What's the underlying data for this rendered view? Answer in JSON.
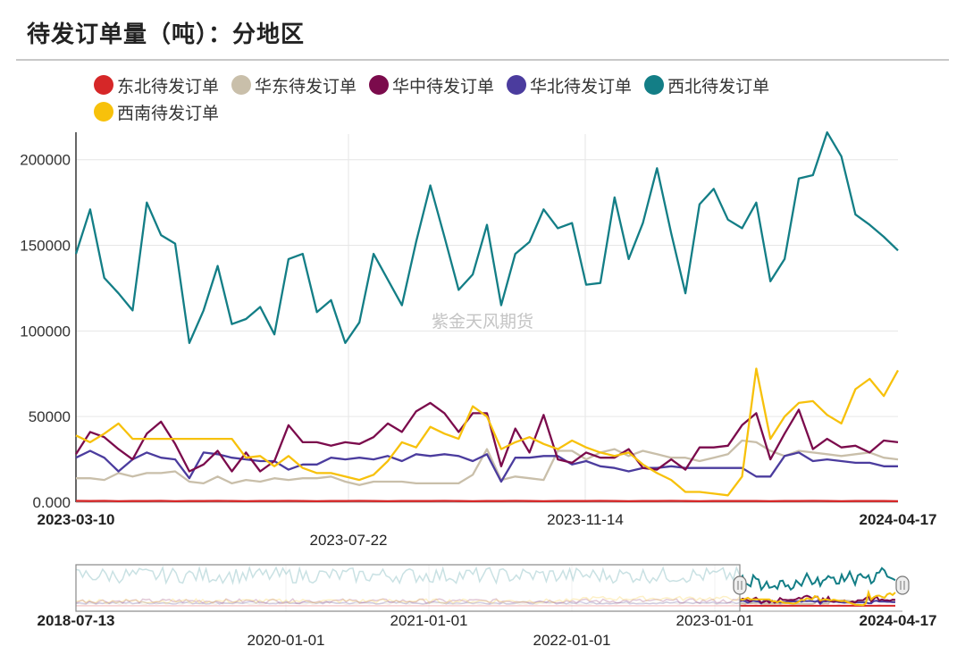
{
  "title": "待发订单量（吨）：分地区",
  "watermark": "紫金天风期货",
  "colors": {
    "东北待发订单": "#d62728",
    "华东待发订单": "#c9bfaa",
    "华中待发订单": "#7b0b4c",
    "华北待发订单": "#4b3c9e",
    "西北待发订单": "#137e86",
    "西南待发订单": "#f7c10b"
  },
  "legend": [
    "东北待发订单",
    "华东待发订单",
    "华中待发订单",
    "华北待发订单",
    "西北待发订单",
    "西南待发订单"
  ],
  "chart_data": {
    "type": "line",
    "x_range": [
      "2023-03-10",
      "2024-04-17"
    ],
    "x_tick_labels": [
      "2023-03-10",
      "2023-07-22",
      "2023-11-14",
      "2024-04-17"
    ],
    "y_tick_labels": [
      "0.000",
      "50000",
      "100000",
      "150000",
      "200000"
    ],
    "ylim": [
      0,
      215000
    ],
    "grid": true,
    "legend_position": "top",
    "series": [
      {
        "name": "西北待发订单",
        "values": [
          145000,
          171000,
          131000,
          122000,
          112000,
          175000,
          156000,
          151000,
          93000,
          112000,
          138000,
          104000,
          107000,
          114000,
          98000,
          142000,
          145000,
          111000,
          118000,
          93000,
          105000,
          145000,
          130000,
          115000,
          152000,
          185000,
          155000,
          124000,
          133000,
          162000,
          115000,
          145000,
          152000,
          171000,
          160000,
          163000,
          127000,
          128000,
          178000,
          142000,
          163000,
          195000,
          157000,
          122000,
          174000,
          183000,
          165000,
          160000,
          175000,
          129000,
          142000,
          189000,
          191000,
          216000,
          202000,
          168000,
          162000,
          155000,
          147000
        ]
      },
      {
        "name": "西南待发订单",
        "values": [
          39000,
          35000,
          40000,
          46000,
          37000,
          37000,
          37000,
          37000,
          37000,
          37000,
          37000,
          37000,
          26000,
          27000,
          21000,
          27000,
          20000,
          17000,
          17000,
          15000,
          13000,
          16000,
          24000,
          35000,
          32000,
          44000,
          40000,
          37000,
          56000,
          50000,
          31000,
          35000,
          38000,
          34000,
          31000,
          36000,
          32000,
          29000,
          27000,
          29000,
          22000,
          17000,
          13000,
          6000,
          6000,
          5000,
          4000,
          15000,
          78000,
          37000,
          50000,
          58000,
          59000,
          51000,
          46000,
          66000,
          72000,
          62000,
          77000
        ]
      },
      {
        "name": "华中待发订单",
        "values": [
          28000,
          41000,
          38000,
          31000,
          25000,
          40000,
          47000,
          34000,
          18000,
          22000,
          30000,
          18000,
          29000,
          18000,
          24000,
          45000,
          35000,
          35000,
          33000,
          35000,
          34000,
          38000,
          46000,
          41000,
          53000,
          58000,
          52000,
          41000,
          52000,
          52000,
          21000,
          43000,
          29000,
          51000,
          25000,
          23000,
          29000,
          26000,
          26000,
          31000,
          20000,
          19000,
          25000,
          19000,
          32000,
          32000,
          33000,
          45000,
          52000,
          25000,
          40000,
          54000,
          31000,
          37000,
          32000,
          33000,
          29000,
          36000,
          35000
        ]
      },
      {
        "name": "华北待发订单",
        "values": [
          26000,
          30000,
          26000,
          18000,
          25000,
          29000,
          26000,
          25000,
          14000,
          29000,
          28000,
          26000,
          25000,
          24000,
          24000,
          19000,
          22000,
          22000,
          26000,
          25000,
          26000,
          25000,
          27000,
          24000,
          28000,
          27000,
          28000,
          27000,
          24000,
          28000,
          12000,
          26000,
          26000,
          27000,
          27000,
          22000,
          24000,
          21000,
          20000,
          18000,
          20000,
          20000,
          21000,
          20000,
          20000,
          20000,
          20000,
          20000,
          15000,
          15000,
          27000,
          29000,
          24000,
          25000,
          24000,
          23000,
          23000,
          21000,
          21000
        ]
      },
      {
        "name": "华东待发订单",
        "values": [
          14000,
          14000,
          13000,
          17000,
          15000,
          17000,
          17000,
          18000,
          12000,
          11000,
          15000,
          11000,
          13000,
          12000,
          14000,
          13000,
          14000,
          14000,
          15000,
          12000,
          10000,
          12000,
          12000,
          12000,
          11000,
          11000,
          11000,
          11000,
          16000,
          31000,
          13000,
          15000,
          14000,
          13000,
          30000,
          30000,
          25000,
          29000,
          31000,
          27000,
          30000,
          28000,
          26000,
          26000,
          24000,
          26000,
          28000,
          36000,
          35000,
          30000,
          27000,
          30000,
          29000,
          28000,
          27000,
          28000,
          29000,
          26000,
          25000
        ]
      },
      {
        "name": "东北待发订单",
        "values": [
          800,
          700,
          800,
          600,
          700,
          700,
          800,
          600,
          700,
          700,
          800,
          700,
          600,
          700,
          700,
          800,
          700,
          600,
          700,
          700,
          800,
          700,
          600,
          700,
          700,
          700,
          800,
          700,
          600,
          700,
          700,
          800,
          700,
          600,
          700,
          700,
          700,
          800,
          700,
          600,
          700,
          700,
          800,
          700,
          600,
          700,
          700,
          700,
          700,
          600,
          700,
          700,
          800,
          700,
          600,
          700,
          700,
          700,
          600
        ]
      }
    ]
  },
  "navigator": {
    "start_label": "2018-07-13",
    "end_label": "2024-04-17",
    "tick_labels": [
      "2020-01-01",
      "2021-01-01",
      "2022-01-01",
      "2023-01-01"
    ]
  }
}
